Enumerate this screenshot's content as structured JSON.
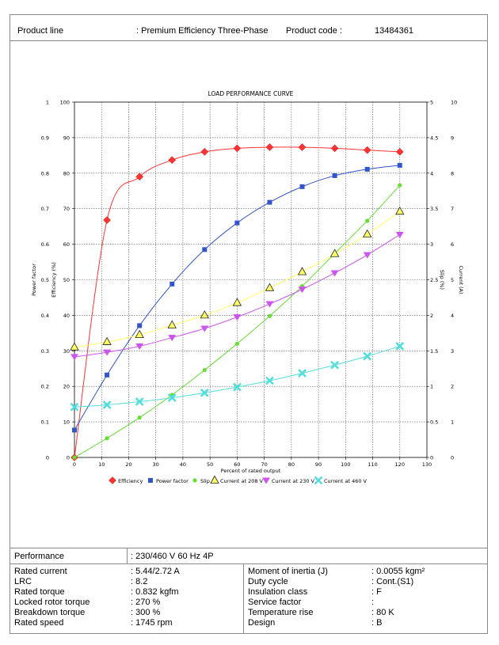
{
  "header": {
    "product_line_label": "Product line",
    "product_line_value": ": Premium Efficiency Three-Phase",
    "product_code_label": "Product code :",
    "product_code_value": "13484361"
  },
  "chart_data": {
    "type": "line",
    "title": "LOAD PERFORMANCE CURVE",
    "xlabel": "Percent of rated output",
    "xlim": [
      0,
      130
    ],
    "x_ticks": [
      "0",
      "10",
      "20",
      "30",
      "40",
      "50",
      "60",
      "70",
      "80",
      "90",
      "100",
      "110",
      "120",
      "130"
    ],
    "axes": {
      "power_factor": {
        "label": "Power factor",
        "ylim": [
          0,
          1
        ],
        "ticks": [
          "0",
          "0.1",
          "0.2",
          "0.3",
          "0.4",
          "0.5",
          "0.6",
          "0.7",
          "0.8",
          "0.9",
          "1"
        ]
      },
      "efficiency": {
        "label": "Efficiency (%)",
        "ylim": [
          0,
          100
        ],
        "ticks": [
          "0",
          "10",
          "20",
          "30",
          "40",
          "50",
          "60",
          "70",
          "80",
          "90",
          "100"
        ]
      },
      "slip": {
        "label": "Slip (%)",
        "ylim": [
          0,
          5
        ],
        "ticks": [
          "0",
          "0.5",
          "1",
          "1.5",
          "2",
          "2.5",
          "3",
          "3.5",
          "4",
          "4.5",
          "5"
        ]
      },
      "current": {
        "label": "Current (A)",
        "ylim": [
          0,
          10
        ],
        "ticks": [
          "0",
          "1",
          "2",
          "3",
          "4",
          "5",
          "6",
          "7",
          "8",
          "9",
          "10"
        ]
      }
    },
    "grid": true,
    "legend_position": "bottom",
    "series": [
      {
        "name": "Efficiency",
        "axis": "efficiency",
        "color": "#ff3333",
        "marker": "diamond",
        "x": [
          0,
          12,
          24,
          36,
          48,
          60,
          72,
          84,
          96,
          108,
          120
        ],
        "y": [
          0,
          66.8,
          79,
          83.7,
          86,
          87,
          87.3,
          87.3,
          87,
          86.5,
          86
        ]
      },
      {
        "name": "Power factor",
        "axis": "power_factor",
        "color": "#3355cc",
        "marker": "square",
        "x": [
          0,
          12,
          24,
          36,
          48,
          60,
          72,
          84,
          96,
          108,
          120
        ],
        "y": [
          0.077,
          0.232,
          0.371,
          0.488,
          0.585,
          0.66,
          0.718,
          0.762,
          0.793,
          0.811,
          0.822
        ]
      },
      {
        "name": "Slip",
        "axis": "slip",
        "color": "#66dd33",
        "marker": "circle",
        "x": [
          0,
          12,
          24,
          36,
          48,
          60,
          72,
          84,
          96,
          108,
          120
        ],
        "y": [
          0,
          0.27,
          0.56,
          0.88,
          1.23,
          1.6,
          1.99,
          2.41,
          2.87,
          3.33,
          3.83
        ]
      },
      {
        "name": "Current at 208 V",
        "axis": "current",
        "color": "#ffff66",
        "marker": "triangle",
        "x": [
          0,
          12,
          24,
          36,
          48,
          60,
          72,
          84,
          96,
          108,
          120
        ],
        "y": [
          3.1,
          3.25,
          3.45,
          3.72,
          4.0,
          4.35,
          4.77,
          5.22,
          5.73,
          6.28,
          6.92
        ]
      },
      {
        "name": "Current at 230 V",
        "axis": "current",
        "color": "#cc55ee",
        "marker": "triangle-down",
        "x": [
          0,
          12,
          24,
          36,
          48,
          60,
          72,
          84,
          96,
          108,
          120
        ],
        "y": [
          2.83,
          2.96,
          3.13,
          3.37,
          3.63,
          3.95,
          4.32,
          4.73,
          5.19,
          5.7,
          6.27
        ]
      },
      {
        "name": "Current at 460 V",
        "axis": "current",
        "color": "#55dddd",
        "marker": "x",
        "x": [
          0,
          12,
          24,
          36,
          48,
          60,
          72,
          84,
          96,
          108,
          120
        ],
        "y": [
          1.42,
          1.48,
          1.57,
          1.68,
          1.82,
          1.98,
          2.16,
          2.37,
          2.6,
          2.85,
          3.13
        ]
      }
    ]
  },
  "specs": {
    "performance_label": "Performance",
    "performance_value": ": 230/460 V 60 Hz 4P",
    "left": [
      {
        "label": "Rated current",
        "value": ": 5.44/2.72 A"
      },
      {
        "label": "LRC",
        "value": ": 8.2"
      },
      {
        "label": "Rated torque",
        "value": ": 0.832 kgfm"
      },
      {
        "label": "Locked rotor torque",
        "value": ": 270 %"
      },
      {
        "label": "Breakdown torque",
        "value": ": 300 %"
      },
      {
        "label": "Rated speed",
        "value": ": 1745 rpm"
      }
    ],
    "right": [
      {
        "label": "Moment of inertia (J)",
        "value": ": 0.0055 kgm²"
      },
      {
        "label": "Duty cycle",
        "value": ": Cont.(S1)"
      },
      {
        "label": "Insulation class",
        "value": ": F"
      },
      {
        "label": "Service factor",
        "value": ":"
      },
      {
        "label": "Temperature rise",
        "value": ": 80 K"
      },
      {
        "label": "Design",
        "value": ": B"
      }
    ]
  }
}
